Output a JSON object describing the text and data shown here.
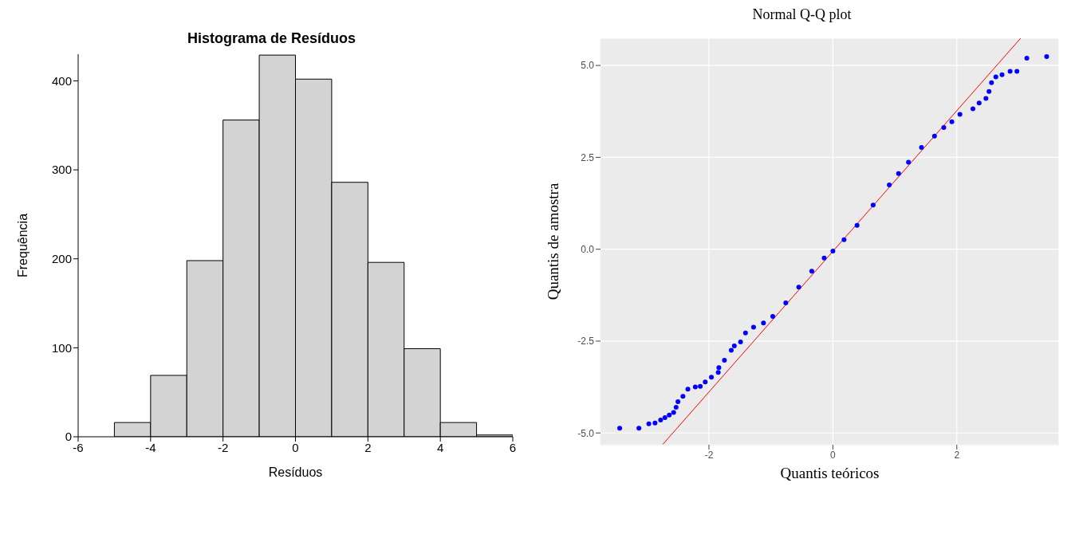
{
  "chart_data": [
    {
      "type": "histogram",
      "title": "Histograma de Resíduos",
      "xlabel": "Resíduos",
      "ylabel": "Frequência",
      "bins": [
        -5,
        -4,
        -3,
        -2,
        -1,
        0,
        1,
        2,
        3,
        4,
        5,
        6
      ],
      "values": [
        16,
        69,
        198,
        356,
        429,
        402,
        286,
        196,
        99,
        16,
        2
      ],
      "color": "#d3d3d3",
      "xlim": [
        -6,
        6
      ],
      "xticks": [
        -6,
        -4,
        -2,
        0,
        2,
        4,
        6
      ],
      "ylim": [
        0,
        430
      ],
      "yticks": [
        0,
        100,
        200,
        300,
        400
      ],
      "grid": false
    },
    {
      "type": "scatter",
      "title": "Normal Q-Q plot",
      "xlabel": "Quantis teóricos",
      "ylabel": "Quantis de amostra",
      "xlim": [
        -3.75,
        3.65
      ],
      "xticks": [
        -2,
        0,
        2
      ],
      "ylim": [
        -5.32,
        5.74
      ],
      "yticks": [
        {
          "value": -5,
          "label": "-5.0"
        },
        {
          "value": -2.5,
          "label": "-2.5"
        },
        {
          "value": 0,
          "label": "0.0"
        },
        {
          "value": 2.5,
          "label": "2.5"
        },
        {
          "value": 5,
          "label": "5.0"
        }
      ],
      "grid": true,
      "series": [
        {
          "type": "scatter",
          "color": "#0000ff",
          "marker": "circle",
          "x": [
            -3.44,
            -3.13,
            -2.97,
            -2.87,
            -2.78,
            -2.71,
            -2.64,
            -2.57,
            -2.53,
            -2.5,
            -2.42,
            -2.34,
            -2.22,
            -2.14,
            -2.06,
            -1.96,
            -1.85,
            -1.84,
            -1.75,
            -1.64,
            -1.59,
            -1.49,
            -1.41,
            -1.28,
            -1.12,
            -0.97,
            -0.76,
            -0.55,
            -0.34,
            -0.14,
            0,
            0.18,
            0.39,
            0.65,
            0.91,
            1.06,
            1.22,
            1.43,
            1.64,
            1.79,
            1.92,
            2.05,
            2.26,
            2.36,
            2.47,
            2.52,
            2.56,
            2.63,
            2.73,
            2.86,
            2.97,
            3.13,
            3.45
          ],
          "values": [
            -4.87,
            -4.87,
            -4.75,
            -4.73,
            -4.65,
            -4.58,
            -4.51,
            -4.44,
            -4.3,
            -4.15,
            -4.0,
            -3.81,
            -3.75,
            -3.73,
            -3.61,
            -3.48,
            -3.35,
            -3.22,
            -3.02,
            -2.75,
            -2.63,
            -2.52,
            -2.28,
            -2.12,
            -2.01,
            -1.83,
            -1.46,
            -1.03,
            -0.6,
            -0.24,
            -0.05,
            0.26,
            0.65,
            1.2,
            1.75,
            2.06,
            2.37,
            2.77,
            3.08,
            3.31,
            3.47,
            3.67,
            3.82,
            3.98,
            4.1,
            4.29,
            4.53,
            4.69,
            4.75,
            4.84,
            4.84,
            5.2,
            5.24
          ]
        },
        {
          "type": "line",
          "color": "#ff0000",
          "marker": "none",
          "x": [
            -2.75,
            3.03
          ],
          "values": [
            -5.32,
            5.74
          ]
        }
      ]
    }
  ]
}
